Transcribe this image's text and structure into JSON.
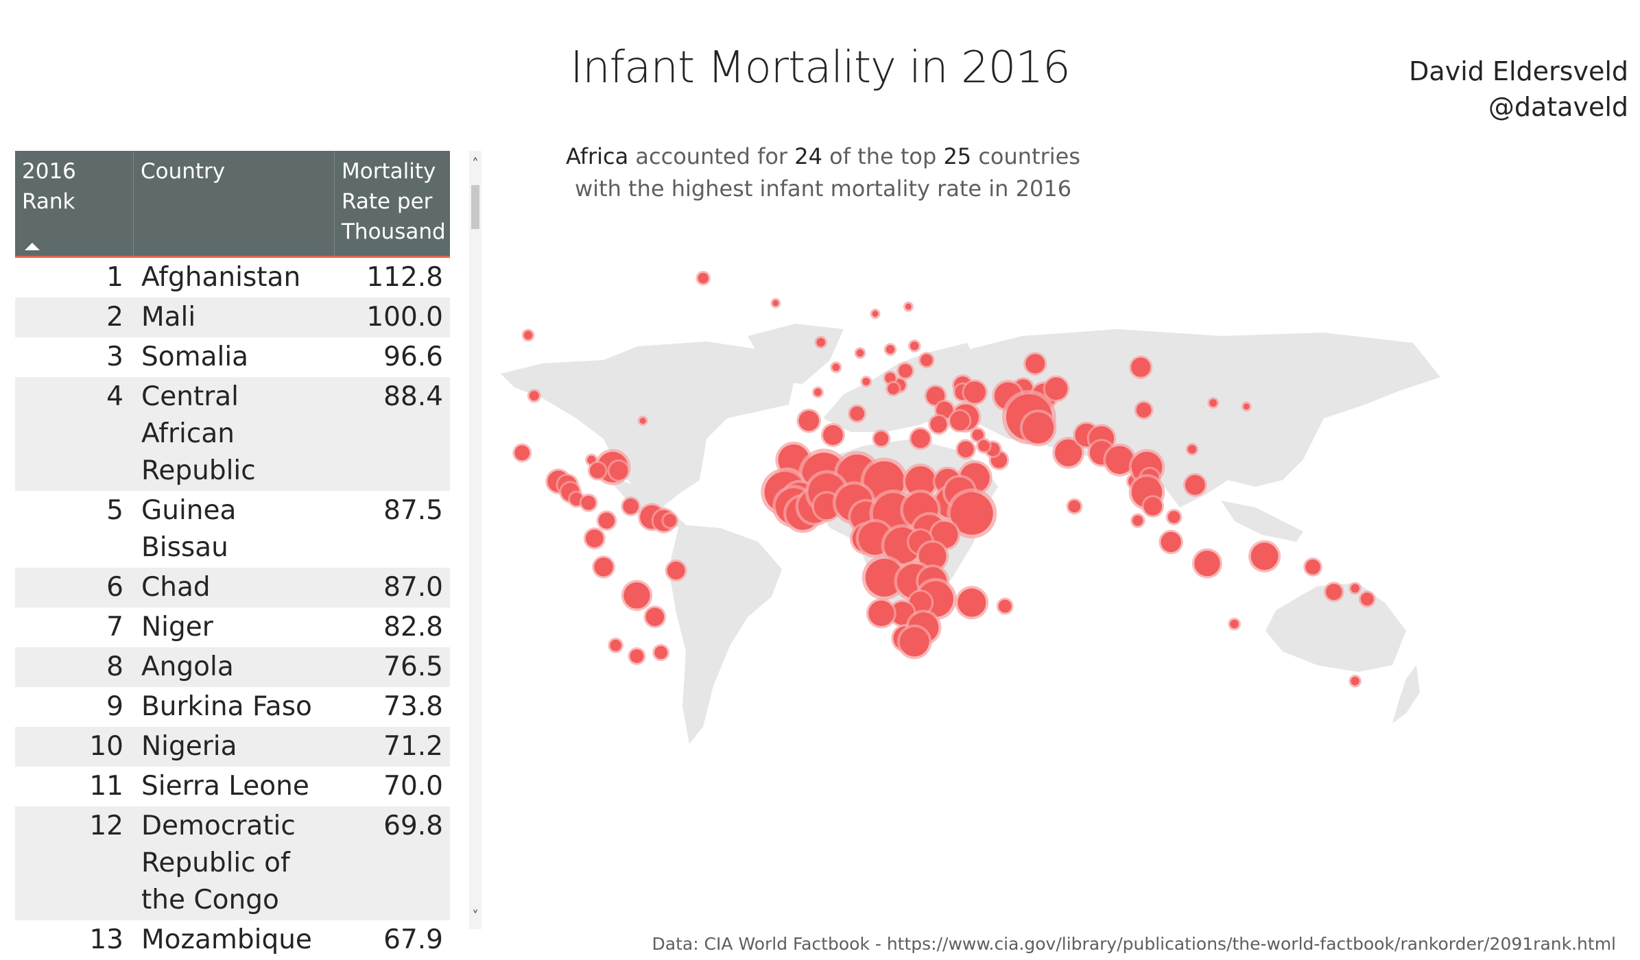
{
  "title": "Infant Mortality in 2016",
  "author": {
    "name": "David Eldersveld",
    "handle": "@dataveld"
  },
  "subtitle": {
    "region": "Africa",
    "text_a": " accounted for ",
    "count": "24",
    "text_b": " of the top ",
    "total": "25",
    "text_c": " countries",
    "line2": "with the highest infant mortality rate in 2016"
  },
  "table": {
    "columns": [
      "2016 Rank",
      "Country",
      "Mortality Rate per Thousand"
    ],
    "sort": "ascending",
    "rows": [
      {
        "rank": "1",
        "country": "Afghanistan",
        "rate": "112.8"
      },
      {
        "rank": "2",
        "country": "Mali",
        "rate": "100.0"
      },
      {
        "rank": "3",
        "country": "Somalia",
        "rate": "96.6"
      },
      {
        "rank": "4",
        "country": "Central African Republic",
        "rate": "88.4"
      },
      {
        "rank": "5",
        "country": "Guinea Bissau",
        "rate": "87.5"
      },
      {
        "rank": "6",
        "country": "Chad",
        "rate": "87.0"
      },
      {
        "rank": "7",
        "country": "Niger",
        "rate": "82.8"
      },
      {
        "rank": "8",
        "country": "Angola",
        "rate": "76.5"
      },
      {
        "rank": "9",
        "country": "Burkina Faso",
        "rate": "73.8"
      },
      {
        "rank": "10",
        "country": "Nigeria",
        "rate": "71.2"
      },
      {
        "rank": "11",
        "country": "Sierra Leone",
        "rate": "70.0"
      },
      {
        "rank": "12",
        "country": "Democratic Republic of the Congo",
        "rate": "69.8"
      },
      {
        "rank": "13",
        "country": "Mozambique",
        "rate": "67.9"
      }
    ]
  },
  "colors": {
    "header_bg": "#5f6a6a",
    "header_accent": "#e0684b",
    "bubble": "#f25c5c",
    "bubble_halo": "#f7a3a3",
    "land": "#e6e6e6"
  },
  "map": {
    "type": "bubble-map",
    "bubbles": [
      {
        "lon": -42,
        "lat": 72,
        "v": 6
      },
      {
        "lon": -100,
        "lat": 56,
        "v": 4
      },
      {
        "lon": -98,
        "lat": 39,
        "v": 5
      },
      {
        "lon": -18,
        "lat": 65,
        "v": 2
      },
      {
        "lon": -102,
        "lat": 23,
        "v": 12
      },
      {
        "lon": -90,
        "lat": 15,
        "v": 25
      },
      {
        "lon": -87,
        "lat": 14,
        "v": 19
      },
      {
        "lon": -86,
        "lat": 12,
        "v": 18
      },
      {
        "lon": -84,
        "lat": 10,
        "v": 9
      },
      {
        "lon": -80,
        "lat": 9,
        "v": 11
      },
      {
        "lon": -79,
        "lat": 21,
        "v": 4
      },
      {
        "lon": -72,
        "lat": 19,
        "v": 50
      },
      {
        "lon": -77,
        "lat": 18,
        "v": 13
      },
      {
        "lon": -70,
        "lat": 18,
        "v": 18
      },
      {
        "lon": -66,
        "lat": 8,
        "v": 13
      },
      {
        "lon": -74,
        "lat": 4,
        "v": 14
      },
      {
        "lon": -59,
        "lat": 5,
        "v": 30
      },
      {
        "lon": -55,
        "lat": 4,
        "v": 24
      },
      {
        "lon": -53,
        "lat": 4,
        "v": 9
      },
      {
        "lon": -78,
        "lat": -1,
        "v": 17
      },
      {
        "lon": -75,
        "lat": -9,
        "v": 19
      },
      {
        "lon": -51,
        "lat": -10,
        "v": 17
      },
      {
        "lon": -64,
        "lat": -17,
        "v": 37
      },
      {
        "lon": -58,
        "lat": -23,
        "v": 18
      },
      {
        "lon": -56,
        "lat": -33,
        "v": 9
      },
      {
        "lon": -64,
        "lat": -34,
        "v": 10
      },
      {
        "lon": -71,
        "lat": -31,
        "v": 7
      },
      {
        "lon": -62,
        "lat": 32,
        "v": 2
      },
      {
        "lon": -3,
        "lat": 54,
        "v": 4
      },
      {
        "lon": 2,
        "lat": 47,
        "v": 3
      },
      {
        "lon": -4,
        "lat": 40,
        "v": 3
      },
      {
        "lon": 10,
        "lat": 51,
        "v": 3
      },
      {
        "lon": 12,
        "lat": 43,
        "v": 3
      },
      {
        "lon": 15,
        "lat": 62,
        "v": 2
      },
      {
        "lon": 26,
        "lat": 64,
        "v": 2
      },
      {
        "lon": 20,
        "lat": 52,
        "v": 4
      },
      {
        "lon": 25,
        "lat": 46,
        "v": 10
      },
      {
        "lon": 32,
        "lat": 49,
        "v": 8
      },
      {
        "lon": 28,
        "lat": 53,
        "v": 4
      },
      {
        "lon": 23,
        "lat": 42,
        "v": 8
      },
      {
        "lon": 20,
        "lat": 44,
        "v": 6
      },
      {
        "lon": 21,
        "lat": 41,
        "v": 7
      },
      {
        "lon": 44,
        "lat": 42,
        "v": 16
      },
      {
        "lon": 44,
        "lat": 40,
        "v": 13
      },
      {
        "lon": 35,
        "lat": 39,
        "v": 18
      },
      {
        "lon": 48,
        "lat": 40,
        "v": 25
      },
      {
        "lon": 68,
        "lat": 48,
        "v": 20
      },
      {
        "lon": 64,
        "lat": 41,
        "v": 19
      },
      {
        "lon": 59,
        "lat": 39,
        "v": 39
      },
      {
        "lon": 71,
        "lat": 39,
        "v": 32
      },
      {
        "lon": 75,
        "lat": 41,
        "v": 27
      },
      {
        "lon": 66,
        "lat": 33,
        "v": 112.8
      },
      {
        "lon": 69,
        "lat": 30,
        "v": 52
      },
      {
        "lon": 79,
        "lat": 23,
        "v": 39
      },
      {
        "lon": 85,
        "lat": 28,
        "v": 28
      },
      {
        "lon": 90,
        "lat": 27,
        "v": 33
      },
      {
        "lon": 90,
        "lat": 23,
        "v": 30
      },
      {
        "lon": 96,
        "lat": 21,
        "v": 42
      },
      {
        "lon": 81,
        "lat": 8,
        "v": 8
      },
      {
        "lon": 104,
        "lat": 35,
        "v": 12
      },
      {
        "lon": 103,
        "lat": 47,
        "v": 20
      },
      {
        "lon": 127,
        "lat": 37,
        "v": 3
      },
      {
        "lon": 138,
        "lat": 36,
        "v": 2
      },
      {
        "lon": 101,
        "lat": 15,
        "v": 9
      },
      {
        "lon": 105,
        "lat": 19,
        "v": 50
      },
      {
        "lon": 106,
        "lat": 16,
        "v": 17
      },
      {
        "lon": 105,
        "lat": 12,
        "v": 50
      },
      {
        "lon": 107,
        "lat": 8,
        "v": 18
      },
      {
        "lon": 102,
        "lat": 4,
        "v": 6
      },
      {
        "lon": 121,
        "lat": 14,
        "v": 21
      },
      {
        "lon": 114,
        "lat": 5,
        "v": 8
      },
      {
        "lon": 113,
        "lat": -2,
        "v": 22
      },
      {
        "lon": 125,
        "lat": -8,
        "v": 35
      },
      {
        "lon": 134,
        "lat": -25,
        "v": 4
      },
      {
        "lon": 174,
        "lat": -41,
        "v": 4
      },
      {
        "lon": 144,
        "lat": -6,
        "v": 40
      },
      {
        "lon": 160,
        "lat": -9,
        "v": 12
      },
      {
        "lon": 167,
        "lat": -16,
        "v": 14
      },
      {
        "lon": 178,
        "lat": -18,
        "v": 9
      },
      {
        "lon": 174,
        "lat": -15,
        "v": 4
      },
      {
        "lon": 120,
        "lat": 24,
        "v": 4
      },
      {
        "lon": 49,
        "lat": 28,
        "v": 7
      },
      {
        "lon": 45,
        "lat": 33,
        "v": 36
      },
      {
        "lon": 38,
        "lat": 35,
        "v": 15
      },
      {
        "lon": 43,
        "lat": 32,
        "v": 20
      },
      {
        "lon": 36,
        "lat": 31,
        "v": 15
      },
      {
        "lon": 45,
        "lat": 24,
        "v": 14
      },
      {
        "lon": 48,
        "lat": 16,
        "v": 47
      },
      {
        "lon": 56,
        "lat": 21,
        "v": 14
      },
      {
        "lon": 54,
        "lat": 24,
        "v": 10
      },
      {
        "lon": 51,
        "lat": 25,
        "v": 7
      },
      {
        "lon": 1,
        "lat": 28,
        "v": 21
      },
      {
        "lon": -7,
        "lat": 32,
        "v": 22
      },
      {
        "lon": 9,
        "lat": 34,
        "v": 11
      },
      {
        "lon": 17,
        "lat": 27,
        "v": 11
      },
      {
        "lon": 30,
        "lat": 27,
        "v": 19
      },
      {
        "lon": -12,
        "lat": 21,
        "v": 52
      },
      {
        "lon": -2,
        "lat": 17,
        "v": 100
      },
      {
        "lon": 9,
        "lat": 17,
        "v": 82.8
      },
      {
        "lon": 18,
        "lat": 15,
        "v": 87
      },
      {
        "lon": 30,
        "lat": 15,
        "v": 49
      },
      {
        "lon": 39,
        "lat": 15,
        "v": 34
      },
      {
        "lon": 40,
        "lat": 9,
        "v": 49
      },
      {
        "lon": 43,
        "lat": 12,
        "v": 46
      },
      {
        "lon": 47,
        "lat": 6,
        "v": 96.6
      },
      {
        "lon": -14,
        "lat": 14,
        "v": 48
      },
      {
        "lon": -15,
        "lat": 12,
        "v": 87.5
      },
      {
        "lon": -10,
        "lat": 10,
        "v": 58
      },
      {
        "lon": -12,
        "lat": 8,
        "v": 70
      },
      {
        "lon": -9,
        "lat": 6,
        "v": 58
      },
      {
        "lon": -5,
        "lat": 8,
        "v": 58
      },
      {
        "lon": -1,
        "lat": 12,
        "v": 73.8
      },
      {
        "lon": -1,
        "lat": 8,
        "v": 36
      },
      {
        "lon": 8,
        "lat": 9,
        "v": 71.2
      },
      {
        "lon": 12,
        "lat": 5,
        "v": 51
      },
      {
        "lon": 21,
        "lat": 6,
        "v": 88.4
      },
      {
        "lon": 30,
        "lat": 7,
        "v": 64
      },
      {
        "lon": 33,
        "lat": 1,
        "v": 57
      },
      {
        "lon": 38,
        "lat": 0,
        "v": 38
      },
      {
        "lon": 12,
        "lat": -1,
        "v": 41
      },
      {
        "lon": 15,
        "lat": -1,
        "v": 58
      },
      {
        "lon": 24,
        "lat": -3,
        "v": 69.8
      },
      {
        "lon": 30,
        "lat": -2,
        "v": 29
      },
      {
        "lon": 34,
        "lat": -6,
        "v": 40
      },
      {
        "lon": 18,
        "lat": -12,
        "v": 76.5
      },
      {
        "lon": 28,
        "lat": -13,
        "v": 64
      },
      {
        "lon": 34,
        "lat": -13,
        "v": 43
      },
      {
        "lon": 35,
        "lat": -18,
        "v": 67.9
      },
      {
        "lon": 30,
        "lat": -19,
        "v": 26
      },
      {
        "lon": 24,
        "lat": -22,
        "v": 29
      },
      {
        "lon": 17,
        "lat": -22,
        "v": 35
      },
      {
        "lon": 25,
        "lat": -29,
        "v": 31
      },
      {
        "lon": 31,
        "lat": -26,
        "v": 49
      },
      {
        "lon": 28,
        "lat": -30,
        "v": 46
      },
      {
        "lon": 47,
        "lat": -19,
        "v": 43
      },
      {
        "lon": 58,
        "lat": -20,
        "v": 9
      }
    ]
  },
  "source": "Data: CIA World Factbook - https://www.cia.gov/library/publications/the-world-factbook/rankorder/2091rank.html"
}
